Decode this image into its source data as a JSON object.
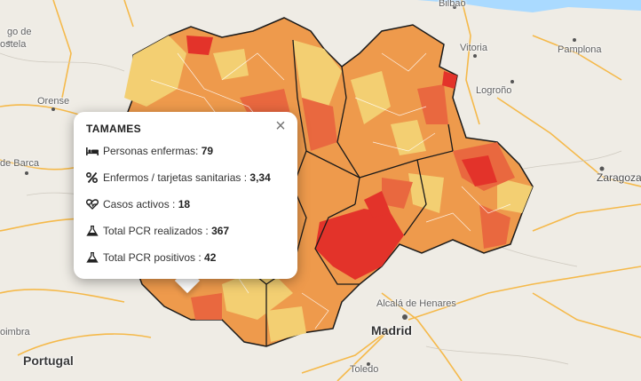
{
  "map": {
    "labels": {
      "bilbao": "Bilbao",
      "vitoria": "Vitoria",
      "pamplona": "Pamplona",
      "logrono": "Logroño",
      "zaragoza": "Zaragoza",
      "orense": "Orense",
      "de_barca": "de Barca",
      "ostela": "ostela",
      "go_de": "go de",
      "coimbra": "oimbra",
      "portugal": "Portugal",
      "alcala": "Alcalá de Henares",
      "madrid": "Madrid",
      "toledo": "Toledo"
    },
    "colors": {
      "background": "#efece5",
      "low": "#f3cf72",
      "medium": "#ee9a4c",
      "high": "#e9683f",
      "very_high": "#e3332a",
      "border": "#1a1a1a",
      "road": "#f5b94a"
    }
  },
  "popup": {
    "title": "TAMAMES",
    "close_icon": "×",
    "rows": [
      {
        "icon": "bed-icon",
        "label": "Personas enfermas: ",
        "value": "79"
      },
      {
        "icon": "percent-icon",
        "label": "Enfermos / tarjetas sanitarias : ",
        "value": "3,34"
      },
      {
        "icon": "heartbeat-icon",
        "label": "Casos activos : ",
        "value": "18"
      },
      {
        "icon": "flask-icon",
        "label": "Total PCR realizados : ",
        "value": "367"
      },
      {
        "icon": "flask-icon",
        "label": "Total PCR positivos : ",
        "value": "42"
      }
    ]
  }
}
